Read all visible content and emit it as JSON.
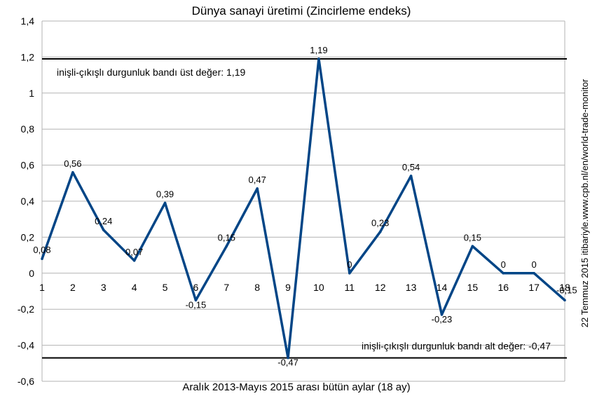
{
  "chart_data": {
    "type": "line",
    "title": "Dünya sanayi üretimi (Zincirleme endeks)",
    "xlabel": "Aralık 2013-Mayıs 2015 arası bütün aylar (18 ay)",
    "ylabel": "",
    "x": [
      1,
      2,
      3,
      4,
      5,
      6,
      7,
      8,
      9,
      10,
      11,
      12,
      13,
      14,
      15,
      16,
      17,
      18
    ],
    "x_tick_labels": [
      "1",
      "2",
      "3",
      "4",
      "5",
      "6",
      "7",
      "8",
      "9",
      "10",
      "11",
      "12",
      "13",
      "14",
      "15",
      "16",
      "17",
      "18"
    ],
    "series": [
      {
        "values": [
          0.08,
          0.56,
          0.24,
          0.07,
          0.39,
          -0.15,
          0.15,
          0.47,
          -0.47,
          1.19,
          0,
          0.23,
          0.54,
          -0.23,
          0.15,
          0,
          0,
          -0.15
        ],
        "labels": [
          "0,08",
          "0,56",
          "0,24",
          "0,07",
          "0,39",
          "-0,15",
          "0,15",
          "0,47",
          "-0,47",
          "1,19",
          "0",
          "0,23",
          "0,54",
          "-0,23",
          "0,15",
          "0",
          "0",
          "-0,15"
        ],
        "color": "#004586"
      }
    ],
    "ylim": [
      -0.6,
      1.4
    ],
    "y_ticks": [
      1.4,
      1.2,
      1,
      0.8,
      0.6,
      0.4,
      0.2,
      0,
      -0.2,
      -0.4,
      -0.6
    ],
    "y_tick_labels": [
      "1,4",
      "1,2",
      "1",
      "0,8",
      "0,6",
      "0,4",
      "0,2",
      "0",
      "-0,2",
      "-0,4",
      "-0,6"
    ],
    "grid": true,
    "reference_lines": [
      {
        "value": 1.19,
        "label": "inişli-çıkışlı durgunluk bandı üst değer: 1,19",
        "color": "#000000"
      },
      {
        "value": -0.47,
        "label": "inişli-çıkışlı durgunluk bandı alt değer: -0,47",
        "color": "#000000"
      }
    ],
    "side_note": "22 Temmuz 2015 itibariyle.www.cpb.nl/en/world-trade-monitor"
  }
}
